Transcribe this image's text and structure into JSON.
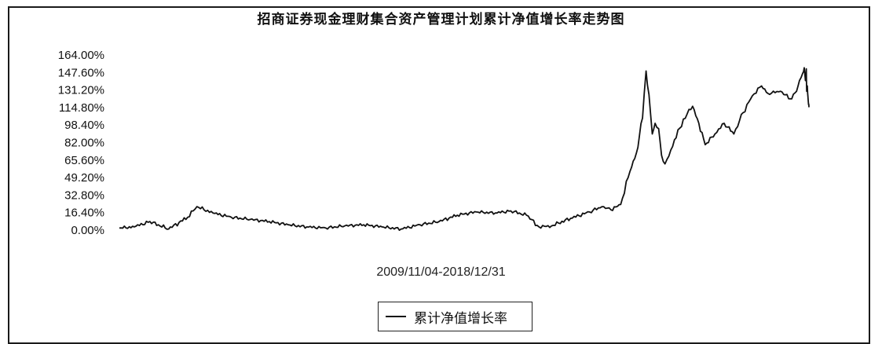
{
  "chart_data": {
    "type": "line",
    "title": "招商证券现金理财集合资产管理计划累计净值增长率走势图",
    "x_range_label": "2009/11/04-2018/12/31",
    "x_range": [
      "2009/11/04",
      "2018/12/31"
    ],
    "y_tick_labels": [
      "164.00%",
      "147.60%",
      "131.20%",
      "114.80%",
      "98.40%",
      "82.00%",
      "65.60%",
      "49.20%",
      "32.80%",
      "16.40%",
      "0.00%"
    ],
    "ylim": [
      0,
      164
    ],
    "y_unit": "%",
    "grid": false,
    "legend_position": "bottom-center",
    "series": [
      {
        "name": "累计净值增长率",
        "color": "#111111",
        "points": [
          [
            "2009/11/04",
            2
          ],
          [
            "2010/01/15",
            3
          ],
          [
            "2010/04/01",
            8
          ],
          [
            "2010/07/01",
            1
          ],
          [
            "2010/10/01",
            12
          ],
          [
            "2010/11/15",
            22
          ],
          [
            "2011/02/01",
            16
          ],
          [
            "2011/05/01",
            12
          ],
          [
            "2011/08/01",
            10
          ],
          [
            "2011/11/01",
            8
          ],
          [
            "2012/02/01",
            5
          ],
          [
            "2012/05/01",
            3
          ],
          [
            "2012/08/01",
            2
          ],
          [
            "2012/11/01",
            4
          ],
          [
            "2013/02/01",
            5
          ],
          [
            "2013/05/01",
            3
          ],
          [
            "2013/08/01",
            1
          ],
          [
            "2013/11/01",
            5
          ],
          [
            "2014/02/01",
            8
          ],
          [
            "2014/05/01",
            14
          ],
          [
            "2014/08/01",
            17
          ],
          [
            "2014/11/01",
            16
          ],
          [
            "2015/01/15",
            18
          ],
          [
            "2015/04/01",
            14
          ],
          [
            "2015/06/01",
            3
          ],
          [
            "2015/08/01",
            4
          ],
          [
            "2015/11/01",
            11
          ],
          [
            "2016/02/01",
            17
          ],
          [
            "2016/04/01",
            22
          ],
          [
            "2016/05/15",
            19
          ],
          [
            "2016/07/01",
            24
          ],
          [
            "2016/08/15",
            55
          ],
          [
            "2016/09/15",
            72
          ],
          [
            "2016/10/15",
            105
          ],
          [
            "2016/11/01",
            149
          ],
          [
            "2016/11/15",
            127
          ],
          [
            "2016/12/01",
            90
          ],
          [
            "2016/12/15",
            100
          ],
          [
            "2017/01/01",
            95
          ],
          [
            "2017/01/15",
            70
          ],
          [
            "2017/02/01",
            62
          ],
          [
            "2017/03/01",
            75
          ],
          [
            "2017/05/01",
            104
          ],
          [
            "2017/06/15",
            116
          ],
          [
            "2017/07/15",
            100
          ],
          [
            "2017/08/15",
            80
          ],
          [
            "2017/10/01",
            90
          ],
          [
            "2017/11/15",
            100
          ],
          [
            "2018/01/01",
            90
          ],
          [
            "2018/02/15",
            110
          ],
          [
            "2018/04/01",
            126
          ],
          [
            "2018/05/15",
            135
          ],
          [
            "2018/06/15",
            128
          ],
          [
            "2018/08/15",
            130
          ],
          [
            "2018/10/01",
            123
          ],
          [
            "2018/11/01",
            130
          ],
          [
            "2018/11/15",
            140
          ],
          [
            "2018/12/01",
            147
          ],
          [
            "2018/12/08",
            152
          ],
          [
            "2018/12/14",
            140
          ],
          [
            "2018/12/18",
            151
          ],
          [
            "2018/12/20",
            130
          ],
          [
            "2018/12/23",
            135
          ],
          [
            "2018/12/26",
            125
          ],
          [
            "2018/12/28",
            120
          ],
          [
            "2018/12/30",
            118
          ],
          [
            "2018/12/31",
            115
          ]
        ]
      }
    ]
  }
}
